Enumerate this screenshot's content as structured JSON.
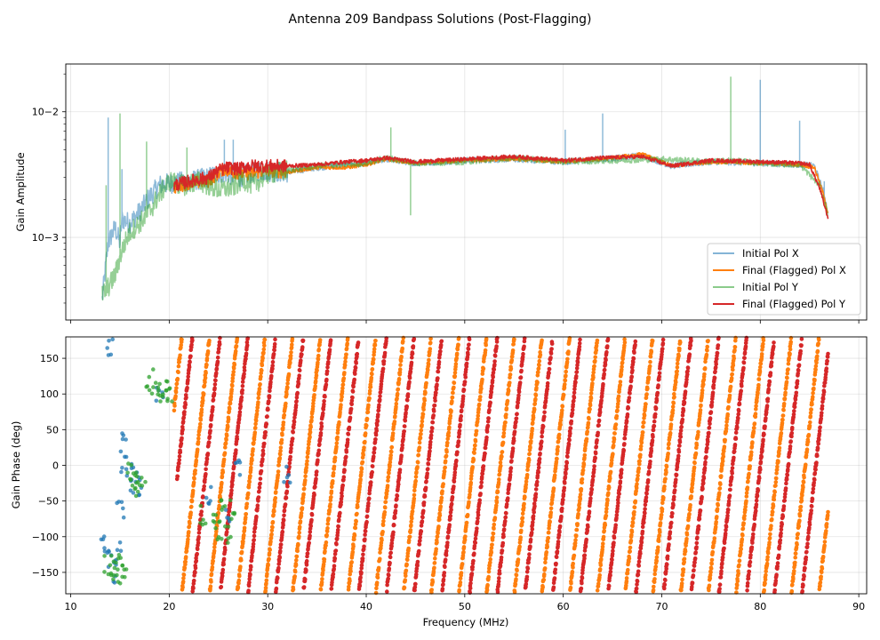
{
  "figure": {
    "title": "Antenna 209 Bandpass Solutions (Post-Flagging)"
  },
  "colors": {
    "initial_x": "#1f77b4",
    "final_x": "#ff7f0e",
    "initial_y": "#2ca02c",
    "final_y": "#d62728"
  },
  "chart_data": [
    {
      "type": "line",
      "ylabel": "Gain Amplitude",
      "yscale": "log",
      "xlim": [
        9.5,
        90.8
      ],
      "ylim": [
        0.00022,
        0.024
      ],
      "y_ticks": [
        0.001,
        0.01
      ],
      "y_tick_labels": [
        "10−3",
        "10−2"
      ],
      "grid": true,
      "legend_position": "lower-right",
      "series": [
        {
          "name": "Initial Pol X",
          "color": "#1f77b4",
          "x": [
            13.2,
            13.8,
            14.5,
            15.0,
            15.2,
            16.0,
            17.0,
            18.0,
            19.0,
            20.0,
            22.0,
            24.0,
            25.5,
            27.0,
            29.0,
            32.0,
            35.0,
            40.0,
            42.0,
            45.0,
            50.0,
            55.0,
            60.0,
            64.0,
            68.0,
            71.0,
            75.0,
            80.0,
            84.0,
            85.5,
            86.5,
            86.9
          ],
          "y": [
            0.00032,
            0.0009,
            0.0012,
            0.0009,
            0.0014,
            0.0013,
            0.0016,
            0.0021,
            0.0026,
            0.0027,
            0.0028,
            0.003,
            0.0033,
            0.003,
            0.0034,
            0.0033,
            0.0036,
            0.0039,
            0.0042,
            0.0039,
            0.0041,
            0.0042,
            0.004,
            0.0042,
            0.0045,
            0.0037,
            0.004,
            0.0039,
            0.0038,
            0.0037,
            0.0022,
            0.0015
          ]
        },
        {
          "name": "Final (Flagged) Pol X",
          "color": "#ff7f0e",
          "x": [
            20.5,
            22.0,
            24.0,
            25.5,
            26.5,
            28.0,
            30.0,
            32.0,
            35.0,
            38.0,
            40.0,
            42.0,
            45.0,
            50.0,
            55.0,
            60.0,
            64.0,
            68.0,
            71.0,
            75.0,
            80.0,
            84.0,
            85.5,
            86.5,
            86.9
          ],
          "y": [
            0.0025,
            0.0027,
            0.0028,
            0.0035,
            0.0033,
            0.0032,
            0.0034,
            0.0033,
            0.0036,
            0.0036,
            0.0038,
            0.0042,
            0.0039,
            0.0041,
            0.0042,
            0.004,
            0.0042,
            0.0046,
            0.0037,
            0.004,
            0.0039,
            0.0038,
            0.0036,
            0.0021,
            0.0015
          ]
        },
        {
          "name": "Initial Pol Y",
          "color": "#2ca02c",
          "x": [
            13.2,
            13.8,
            14.5,
            15.0,
            15.5,
            16.0,
            17.0,
            18.0,
            19.0,
            20.0,
            21.5,
            23.0,
            25.0,
            26.5,
            27.5,
            28.5,
            30.0,
            32.0,
            35.0,
            40.0,
            42.0,
            45.0,
            50.0,
            55.0,
            60.0,
            65.0,
            70.0,
            75.0,
            77.0,
            80.0,
            84.0,
            86.0,
            86.9
          ],
          "y": [
            0.00035,
            0.0004,
            0.0005,
            0.0007,
            0.0009,
            0.0011,
            0.0013,
            0.0016,
            0.0022,
            0.0028,
            0.0026,
            0.0028,
            0.0024,
            0.0025,
            0.0029,
            0.0026,
            0.0032,
            0.0034,
            0.0037,
            0.0039,
            0.0043,
            0.0039,
            0.004,
            0.0043,
            0.004,
            0.0041,
            0.0042,
            0.004,
            0.0041,
            0.0039,
            0.0038,
            0.0026,
            0.0015
          ]
        },
        {
          "name": "Final (Flagged) Pol Y",
          "color": "#d62728",
          "x": [
            20.5,
            22.0,
            24.0,
            25.0,
            26.0,
            27.0,
            28.0,
            30.0,
            32.0,
            35.0,
            38.0,
            40.0,
            42.0,
            45.0,
            50.0,
            55.0,
            60.0,
            64.0,
            68.0,
            71.0,
            75.0,
            80.0,
            84.0,
            85.0,
            86.0,
            86.9
          ],
          "y": [
            0.0026,
            0.0028,
            0.003,
            0.0034,
            0.0036,
            0.0035,
            0.0037,
            0.0037,
            0.0037,
            0.0038,
            0.004,
            0.0041,
            0.0043,
            0.004,
            0.0042,
            0.0044,
            0.0041,
            0.0043,
            0.0044,
            0.0037,
            0.0041,
            0.004,
            0.0039,
            0.0038,
            0.0025,
            0.0014
          ]
        }
      ]
    },
    {
      "type": "scatter",
      "xlabel": "Frequency (MHz)",
      "ylabel": "Gain Phase (deg)",
      "xlim": [
        9.5,
        90.8
      ],
      "ylim": [
        -180,
        180
      ],
      "x_ticks": [
        10,
        20,
        30,
        40,
        50,
        60,
        70,
        80,
        90
      ],
      "y_ticks": [
        -150,
        -100,
        -50,
        0,
        50,
        100,
        150
      ],
      "grid": true,
      "series": [
        {
          "name": "Initial Pol X",
          "color": "#1f77b4",
          "x": [
            13.5,
            13.8,
            14.0,
            14.3,
            14.8,
            15.0,
            15.2,
            15.5,
            16.0,
            16.5,
            17.0,
            19.0,
            24.0,
            26.0,
            27.0,
            32.0
          ],
          "y": [
            -110,
            -130,
            165,
            -150,
            -120,
            -60,
            30,
            0,
            -25,
            -10,
            -30,
            100,
            -40,
            -70,
            0,
            -10
          ]
        },
        {
          "name": "Initial Pol Y",
          "color": "#2ca02c",
          "x": [
            13.8,
            14.2,
            14.6,
            15.0,
            15.4,
            16.0,
            16.4,
            16.8,
            17.2,
            18.0,
            18.5,
            19.0,
            19.5,
            20.0,
            23.5,
            24.5,
            25.0,
            25.5,
            26.0,
            26.5
          ],
          "y": [
            -140,
            -145,
            -150,
            -130,
            -155,
            -10,
            -25,
            -35,
            -30,
            120,
            110,
            100,
            105,
            95,
            -70,
            -80,
            -90,
            -50,
            -100,
            -60
          ]
        },
        {
          "name": "Final (Flagged) Pol X",
          "color": "#ff7f0e",
          "x": [
            21.0,
            23.0,
            25.0,
            27.0,
            30.0,
            31.9
          ],
          "y": [
            0,
            120,
            -60,
            -20,
            -110,
            150
          ]
        },
        {
          "name": "Final (Flagged) Pol Y",
          "color": "#d62728",
          "x": [
            21.5,
            24.0,
            27.5,
            31.0,
            33.0,
            86.5
          ],
          "y": [
            -90,
            30,
            -40,
            -120,
            60,
            -150
          ]
        }
      ]
    }
  ]
}
